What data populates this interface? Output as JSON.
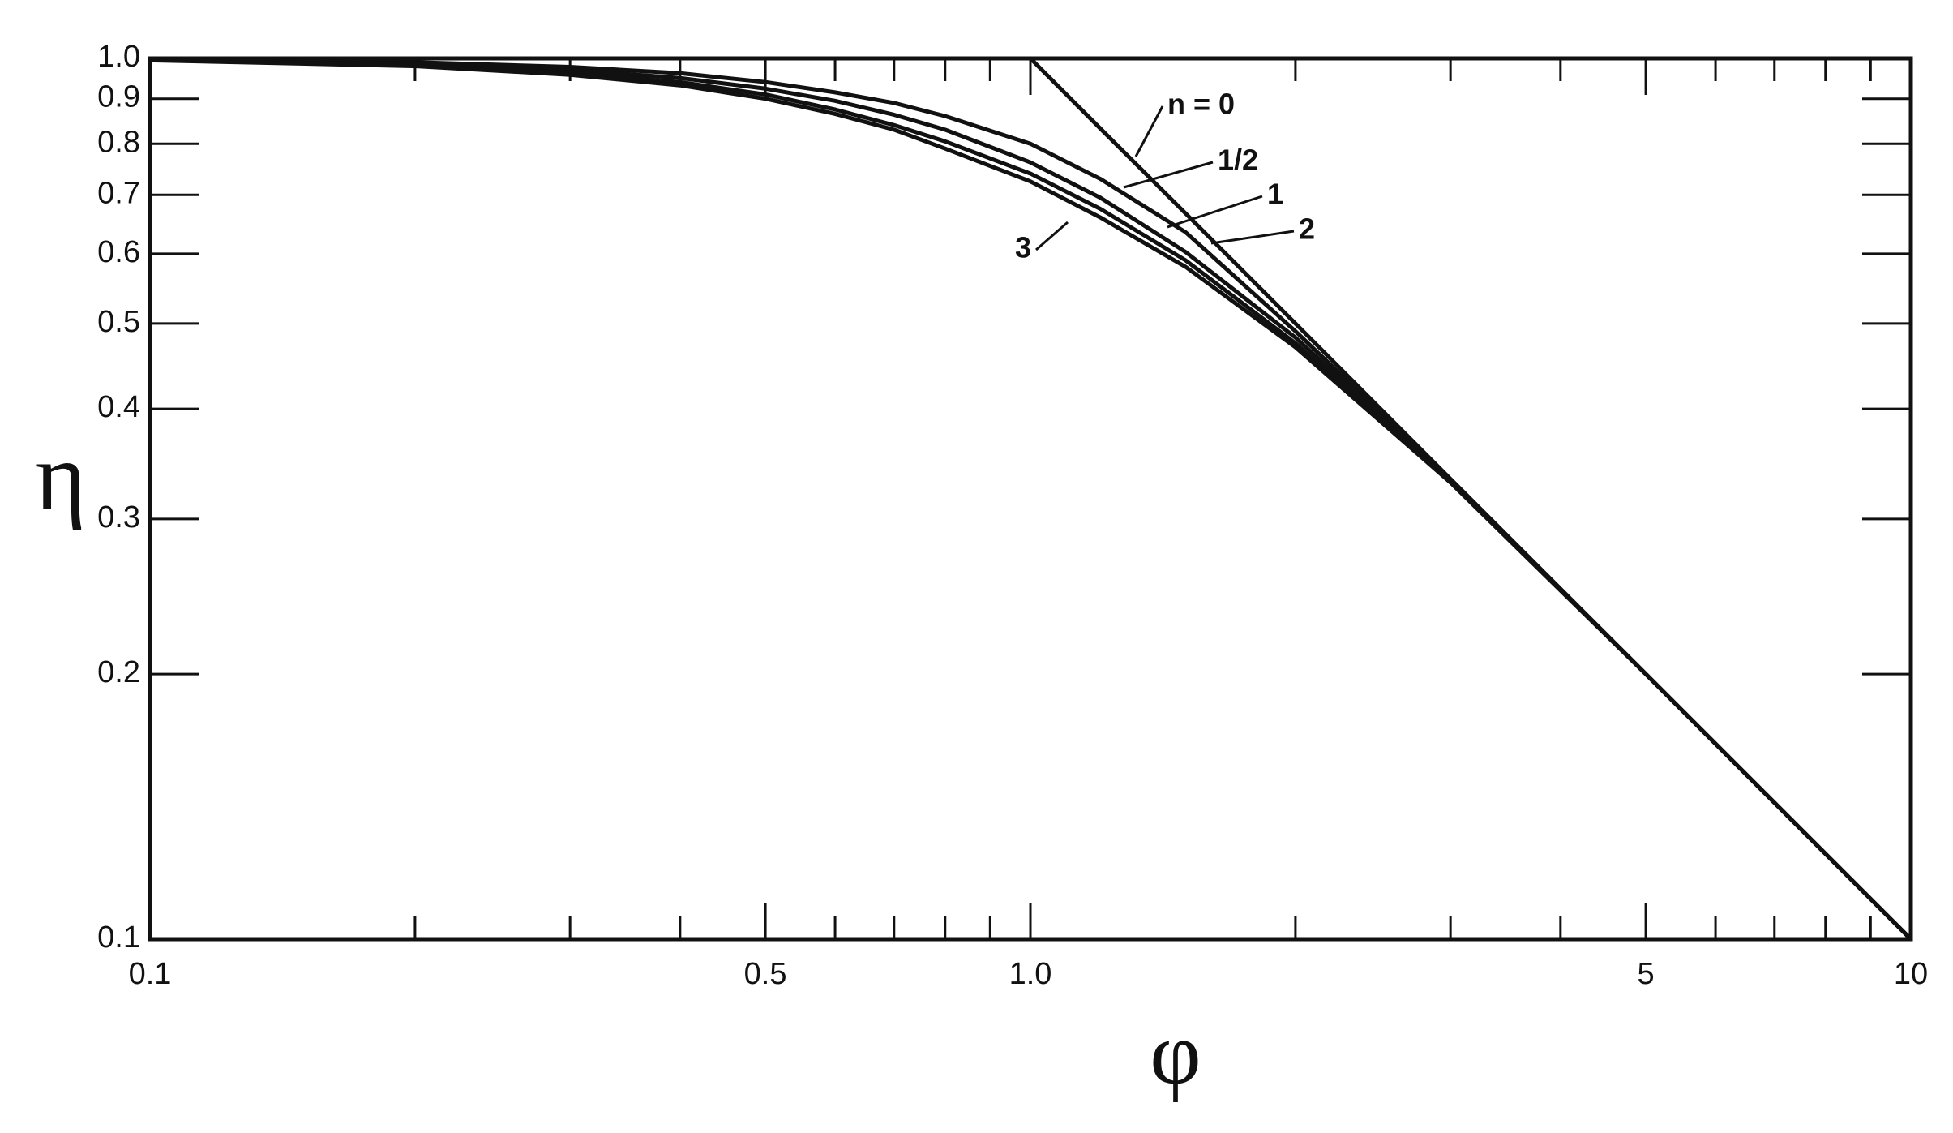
{
  "chart_data": {
    "type": "line",
    "x_label": "φ",
    "y_label": "η",
    "x": [
      0.1,
      0.2,
      0.3,
      0.4,
      0.5,
      0.6,
      0.7,
      0.8,
      1.0,
      1.2,
      1.5,
      2,
      3,
      5,
      10
    ],
    "series": [
      {
        "name": "n = 0",
        "color": "#111111",
        "values": [
          1,
          1,
          1,
          1,
          1,
          1,
          1,
          1,
          1,
          0.833,
          0.667,
          0.5,
          0.333,
          0.2,
          0.1
        ]
      },
      {
        "name": "1/2",
        "color": "#111111",
        "values": [
          0.998,
          0.99,
          0.978,
          0.962,
          0.94,
          0.915,
          0.89,
          0.86,
          0.8,
          0.73,
          0.635,
          0.49,
          0.333,
          0.2,
          0.1
        ]
      },
      {
        "name": "1",
        "color": "#111111",
        "values": [
          0.997,
          0.987,
          0.971,
          0.95,
          0.924,
          0.895,
          0.863,
          0.83,
          0.762,
          0.695,
          0.603,
          0.482,
          0.332,
          0.2,
          0.1
        ]
      },
      {
        "name": "2",
        "color": "#111111",
        "values": [
          0.996,
          0.983,
          0.963,
          0.94,
          0.91,
          0.875,
          0.84,
          0.805,
          0.74,
          0.675,
          0.59,
          0.475,
          0.33,
          0.2,
          0.1
        ]
      },
      {
        "name": "3",
        "color": "#111111",
        "values": [
          0.995,
          0.98,
          0.958,
          0.932,
          0.9,
          0.865,
          0.83,
          0.79,
          0.725,
          0.66,
          0.58,
          0.47,
          0.33,
          0.2,
          0.1
        ]
      }
    ],
    "xlog": true,
    "ylog": true,
    "xlim": [
      0.1,
      10
    ],
    "ylim": [
      0.1,
      1
    ],
    "xticks": [
      0.1,
      0.5,
      {
        "value": 1,
        "label": "1.0"
      },
      5,
      10
    ],
    "xminor_ticks": [
      0.2,
      0.3,
      0.4,
      0.6,
      0.7,
      0.8,
      0.9,
      2,
      3,
      4,
      6,
      7,
      8,
      9
    ],
    "yticks": [
      0.1,
      0.2,
      0.3,
      0.4,
      0.5,
      0.6,
      0.7,
      0.8,
      0.9,
      {
        "value": 1,
        "label": "1.0"
      }
    ]
  }
}
